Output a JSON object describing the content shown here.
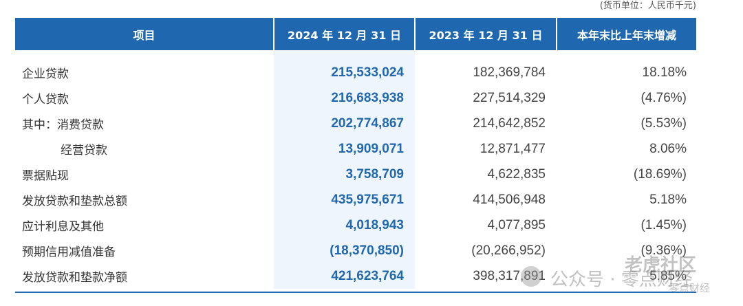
{
  "unit_note": "(货币单位：人民币千元)",
  "headers": [
    "项目",
    "2024 年 12 月 31 日",
    "2023 年 12 月 31 日",
    "本年末比上年末增减"
  ],
  "rows": [
    {
      "label": "企业贷款",
      "cur": "215,533,024",
      "prev": "182,369,784",
      "chg": "18.18%"
    },
    {
      "label": "个人贷款",
      "cur": "216,683,938",
      "prev": "227,514,329",
      "chg": "(4.76%)"
    },
    {
      "label": "其中：消费贷款",
      "cur": "202,774,867",
      "prev": "214,642,852",
      "chg": "(5.53%)"
    },
    {
      "label": "经营贷款",
      "cur": "13,909,071",
      "prev": "12,871,477",
      "chg": "8.06%"
    },
    {
      "label": "票据贴现",
      "cur": "3,758,709",
      "prev": "4,622,835",
      "chg": "(18.69%)"
    },
    {
      "label": "发放贷款和垫款总额",
      "cur": "435,975,671",
      "prev": "414,506,948",
      "chg": "5.18%"
    },
    {
      "label": "应计利息及其他",
      "cur": "4,018,943",
      "prev": "4,077,895",
      "chg": "(1.45%)"
    },
    {
      "label": "预期信用减值准备",
      "cur": "(18,370,850)",
      "prev": "(20,266,952)",
      "chg": "(9.36%)"
    },
    {
      "label": "发放贷款和垫款净额",
      "cur": "421,623,764",
      "prev": "398,317,891",
      "chg": "5.85%"
    }
  ],
  "watermark": {
    "text": "公众号 · 零点财经",
    "logo": "老虎社区",
    "sub": "零点财经"
  },
  "colors": {
    "header_bg": "#1f68b0",
    "current_col_bg": "#eef5fc",
    "current_col_text": "#1f68b0"
  }
}
